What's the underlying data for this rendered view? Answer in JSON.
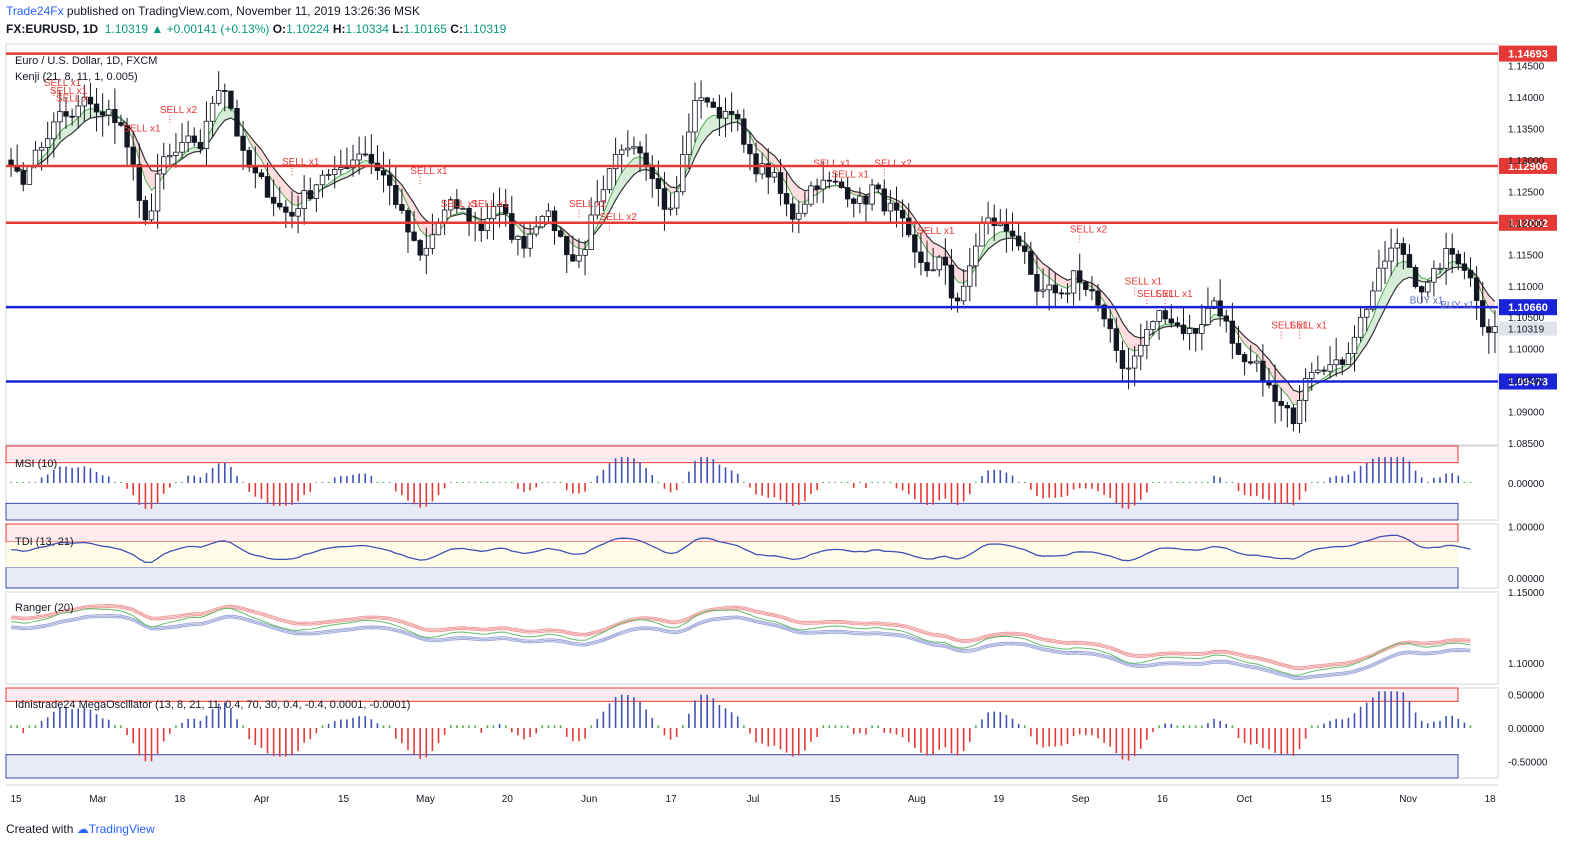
{
  "header": {
    "brand": "Trade24Fx",
    "publish_text": " published on TradingView.com, November 11, 2019 13:26:36 MSK",
    "symbol": "FX:EURUSD, 1D",
    "last": "1.10319",
    "change_arrow": "▲",
    "change": "+0.00141 (+0.13%)",
    "o_label": "O:",
    "o": "1.10224",
    "h_label": "H:",
    "h": "1.10334",
    "l_label": "L:",
    "l": "1.10165",
    "c_label": "C:",
    "c": "1.10319"
  },
  "footer": {
    "created": "Created with",
    "brand": "TradingView"
  },
  "colors": {
    "red": "#e53935",
    "blue": "#1a23d8",
    "green": "#4caf50",
    "bull_fill": "#ffffff",
    "candle": "#131722",
    "price_tag": "#e0e3eb"
  },
  "chart_data": [
    {
      "type": "candlestick",
      "title": "Euro / U.S. Dollar, 1D, FXCM",
      "indicator": "Kenji (21, 8, 11, 1, 0.005)",
      "ylim": [
        1.085,
        1.1475
      ],
      "y_ticks": [
        "1.14500",
        "1.14000",
        "1.13500",
        "1.13000",
        "1.12500",
        "1.12000",
        "1.11500",
        "1.11000",
        "1.10500",
        "1.10000",
        "1.09500",
        "1.09000",
        "1.08500"
      ],
      "x_ticks": [
        "15",
        "Mar",
        "18",
        "Apr",
        "15",
        "May",
        "20",
        "Jun",
        "17",
        "Jul",
        "15",
        "Aug",
        "19",
        "Sep",
        "16",
        "Oct",
        "15",
        "Nov",
        "18"
      ],
      "last_price_label": "1.10319",
      "horizontal_levels": [
        {
          "value": 1.14693,
          "label": "1.14693",
          "color": "red"
        },
        {
          "value": 1.12906,
          "label": "1.12906",
          "color": "red"
        },
        {
          "value": 1.12002,
          "label": "1.12002",
          "color": "red"
        },
        {
          "value": 1.1066,
          "label": "1.10660",
          "color": "blue"
        },
        {
          "value": 1.09478,
          "label": "1.09478",
          "color": "blue"
        }
      ],
      "close_path": [
        1.1301,
        1.1255,
        1.1305,
        1.1318,
        1.1348,
        1.1375,
        1.1362,
        1.1392,
        1.1395,
        1.1365,
        1.138,
        1.135,
        1.13,
        1.121,
        1.1218,
        1.13,
        1.1305,
        1.1318,
        1.1335,
        1.132,
        1.139,
        1.143,
        1.138,
        1.131,
        1.128,
        1.1265,
        1.124,
        1.122,
        1.1212,
        1.124,
        1.125,
        1.128,
        1.127,
        1.129,
        1.13,
        1.132,
        1.1295,
        1.128,
        1.125,
        1.121,
        1.117,
        1.114,
        1.118,
        1.1212,
        1.123,
        1.122,
        1.12,
        1.119,
        1.123,
        1.122,
        1.118,
        1.1165,
        1.119,
        1.122,
        1.12,
        1.117,
        1.114,
        1.115,
        1.1212,
        1.124,
        1.1295,
        1.1312,
        1.1335,
        1.131,
        1.128,
        1.123,
        1.1215,
        1.1305,
        1.138,
        1.141,
        1.1375,
        1.1375,
        1.1385,
        1.1325,
        1.129,
        1.1285,
        1.1275,
        1.1235,
        1.121,
        1.123,
        1.1265,
        1.1262,
        1.1262,
        1.1255,
        1.124,
        1.123,
        1.126,
        1.123,
        1.122,
        1.1195,
        1.115,
        1.1135,
        1.112,
        1.115,
        1.107,
        1.109,
        1.1155,
        1.1205,
        1.12,
        1.119,
        1.1185,
        1.115,
        1.109,
        1.1085,
        1.1098,
        1.108,
        1.1125,
        1.109,
        1.108,
        1.1055,
        1.102,
        1.0955,
        1.0985,
        1.1015,
        1.105,
        1.106,
        1.104,
        1.103,
        1.1025,
        1.105,
        1.1078,
        1.105,
        1.099,
        1.097,
        1.0975,
        1.0955,
        1.0915,
        1.09,
        1.089,
        1.096,
        1.0975,
        1.0975,
        1.097,
        1.0985,
        1.1025,
        1.106,
        1.11,
        1.114,
        1.1165,
        1.115,
        1.111,
        1.109,
        1.112,
        1.115,
        1.115,
        1.113,
        1.1095,
        1.103,
        1.1032
      ]
    },
    {
      "type": "histogram",
      "title": "MSI (10)",
      "y_ticks": [
        "0.00000"
      ],
      "ylim": [
        -1,
        1
      ]
    },
    {
      "type": "line",
      "title": "TDI (13, 21)",
      "y_ticks": [
        "1.00000",
        "0.00000"
      ],
      "ylim": [
        -0.2,
        1.05
      ]
    },
    {
      "type": "band",
      "title": "Ranger (20)",
      "y_ticks": [
        "1.15000",
        "1.10000"
      ],
      "ylim": [
        1.085,
        1.15
      ]
    },
    {
      "type": "histogram",
      "title": "Idnistrade24 MegaOscillator (13, 8, 21, 11, 0.4, 70, 30, 0.4, -0.4, 0.0001, -0.0001)",
      "y_ticks": [
        "0.50000",
        "0.00000",
        "-0.50000"
      ],
      "ylim": [
        -0.75,
        0.6
      ]
    }
  ],
  "signals": [
    {
      "text": "SELL x1",
      "i": 7,
      "price": 1.1418
    },
    {
      "text": "SELL x1",
      "i": 8,
      "price": 1.1405
    },
    {
      "text": "SELL x",
      "i": 9,
      "price": 1.1393
    },
    {
      "text": "SELL x1",
      "i": 20,
      "price": 1.1345
    },
    {
      "text": "SELL x2",
      "i": 26,
      "price": 1.1375
    },
    {
      "text": "SELL x1",
      "i": 46,
      "price": 1.1292
    },
    {
      "text": "SELL x1",
      "i": 67,
      "price": 1.1278
    },
    {
      "text": "SELL x1",
      "i": 72,
      "price": 1.1225
    },
    {
      "text": "SELL x1",
      "i": 77,
      "price": 1.1225
    },
    {
      "text": "SELL x2",
      "i": 93,
      "price": 1.1225
    },
    {
      "text": "SELL x2",
      "i": 98,
      "price": 1.1205
    },
    {
      "text": "SELL x1",
      "i": 133,
      "price": 1.129
    },
    {
      "text": "SELL x1",
      "i": 136,
      "price": 1.1272
    },
    {
      "text": "SELL x2",
      "i": 143,
      "price": 1.129
    },
    {
      "text": "SELL x1",
      "i": 150,
      "price": 1.1182
    },
    {
      "text": "SELL x2",
      "i": 175,
      "price": 1.1185
    },
    {
      "text": "SELL x1",
      "i": 184,
      "price": 1.1102
    },
    {
      "text": "SELL x1",
      "i": 186,
      "price": 1.1082
    },
    {
      "text": "SELL x1",
      "i": 189,
      "price": 1.1082
    },
    {
      "text": "SELL x1",
      "i": 208,
      "price": 1.1032
    },
    {
      "text": "SELL x1",
      "i": 211,
      "price": 1.1032
    }
  ],
  "buy_signals": [
    {
      "text": "BUY x1",
      "i": 231,
      "price": 1.1072
    },
    {
      "text": "BUY x1",
      "i": 236,
      "price": 1.1065
    }
  ]
}
